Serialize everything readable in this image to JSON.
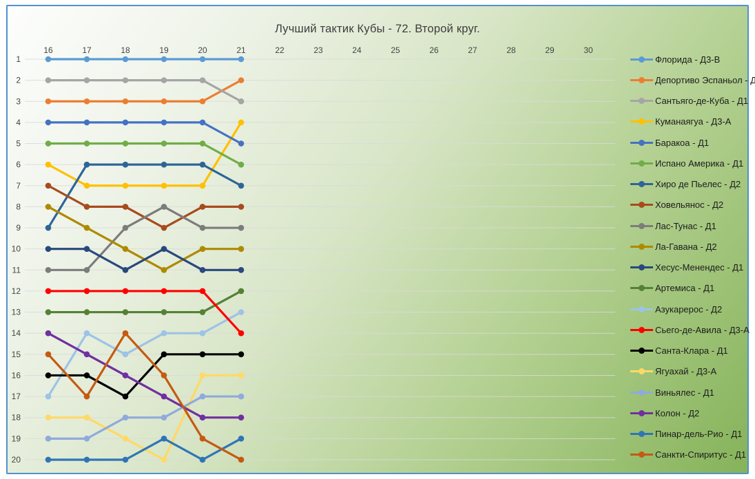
{
  "chart_data": {
    "type": "line",
    "subtype": "bump-rank-chart",
    "title": "Лучший тактик Кубы - 72. Второй круг.",
    "xlabel": "",
    "ylabel": "",
    "x_ticks": [
      16,
      17,
      18,
      19,
      20,
      21,
      22,
      23,
      24,
      25,
      26,
      27,
      28,
      29,
      30
    ],
    "x_data": [
      16,
      17,
      18,
      19,
      20,
      21
    ],
    "y_ticks": [
      1,
      2,
      3,
      4,
      5,
      6,
      7,
      8,
      9,
      10,
      11,
      12,
      13,
      14,
      15,
      16,
      17,
      18,
      19,
      20
    ],
    "ylim": [
      1,
      20
    ],
    "y_inverted": true,
    "grid": true,
    "legend_position": "right",
    "series": [
      {
        "name": "Флорида - Д3-В",
        "color": "#5B9BD5",
        "values": [
          1,
          1,
          1,
          1,
          1,
          1
        ]
      },
      {
        "name": "Депортиво Эспаньол - Д2",
        "color": "#ED7D31",
        "values": [
          3,
          3,
          3,
          3,
          3,
          2
        ]
      },
      {
        "name": "Сантьяго-де-Куба - Д1",
        "color": "#A5A5A5",
        "values": [
          2,
          2,
          2,
          2,
          2,
          3
        ]
      },
      {
        "name": "Куманаягуа - Д3-А",
        "color": "#FFC000",
        "values": [
          6,
          7,
          7,
          7,
          7,
          4
        ]
      },
      {
        "name": "Баракоа - Д1",
        "color": "#4472C4",
        "values": [
          4,
          4,
          4,
          4,
          4,
          5
        ]
      },
      {
        "name": "Испано Америка - Д1",
        "color": "#70AD47",
        "values": [
          5,
          5,
          5,
          5,
          5,
          6
        ]
      },
      {
        "name": "Хиро де Пьелес - Д2",
        "color": "#2E6598",
        "values": [
          9,
          6,
          6,
          6,
          6,
          7
        ]
      },
      {
        "name": "Ховельянос - Д2",
        "color": "#A84B1D",
        "values": [
          7,
          8,
          8,
          9,
          8,
          8
        ]
      },
      {
        "name": "Лас-Тунас - Д1",
        "color": "#7C7C7C",
        "values": [
          11,
          11,
          9,
          8,
          9,
          9
        ]
      },
      {
        "name": "Ла-Гавана - Д2",
        "color": "#AD8A00",
        "values": [
          8,
          9,
          10,
          11,
          10,
          10
        ]
      },
      {
        "name": "Хесус-Менендес - Д1",
        "color": "#29487E",
        "values": [
          10,
          10,
          11,
          10,
          11,
          11
        ]
      },
      {
        "name": "Артемиса - Д1",
        "color": "#548235",
        "values": [
          13,
          13,
          13,
          13,
          13,
          12
        ]
      },
      {
        "name": "Азукарерос - Д2",
        "color": "#9DC3E6",
        "values": [
          17,
          14,
          15,
          14,
          14,
          13
        ]
      },
      {
        "name": "Сьего-де-Авила - Д3-А",
        "color": "#FF0000",
        "values": [
          12,
          12,
          12,
          12,
          12,
          14
        ]
      },
      {
        "name": "Санта-Клара - Д1",
        "color": "#000000",
        "values": [
          16,
          16,
          17,
          15,
          15,
          15
        ]
      },
      {
        "name": "Ягуахай - Д3-А",
        "color": "#FFD966",
        "values": [
          18,
          18,
          19,
          20,
          16,
          16
        ]
      },
      {
        "name": "Виньялес - Д1",
        "color": "#8FAADC",
        "values": [
          19,
          19,
          18,
          18,
          17,
          17
        ]
      },
      {
        "name": "Колон - Д2",
        "color": "#7030A0",
        "values": [
          14,
          15,
          16,
          17,
          18,
          18
        ]
      },
      {
        "name": "Пинар-дель-Рио - Д1",
        "color": "#2E75B6",
        "values": [
          20,
          20,
          20,
          19,
          20,
          19
        ]
      },
      {
        "name": "Санкти-Спиритус - Д1",
        "color": "#C55A11",
        "values": [
          15,
          17,
          14,
          16,
          19,
          20
        ]
      }
    ]
  },
  "colors": {
    "frame_border": "#4F92CF",
    "background_top_left": "#FDFEFD",
    "background_bottom_right": "#86B35A",
    "gridline": "#D9D9D9",
    "axis_text": "#444444",
    "title_text": "#3D3D3D",
    "legend_text": "#1C1C1C"
  }
}
